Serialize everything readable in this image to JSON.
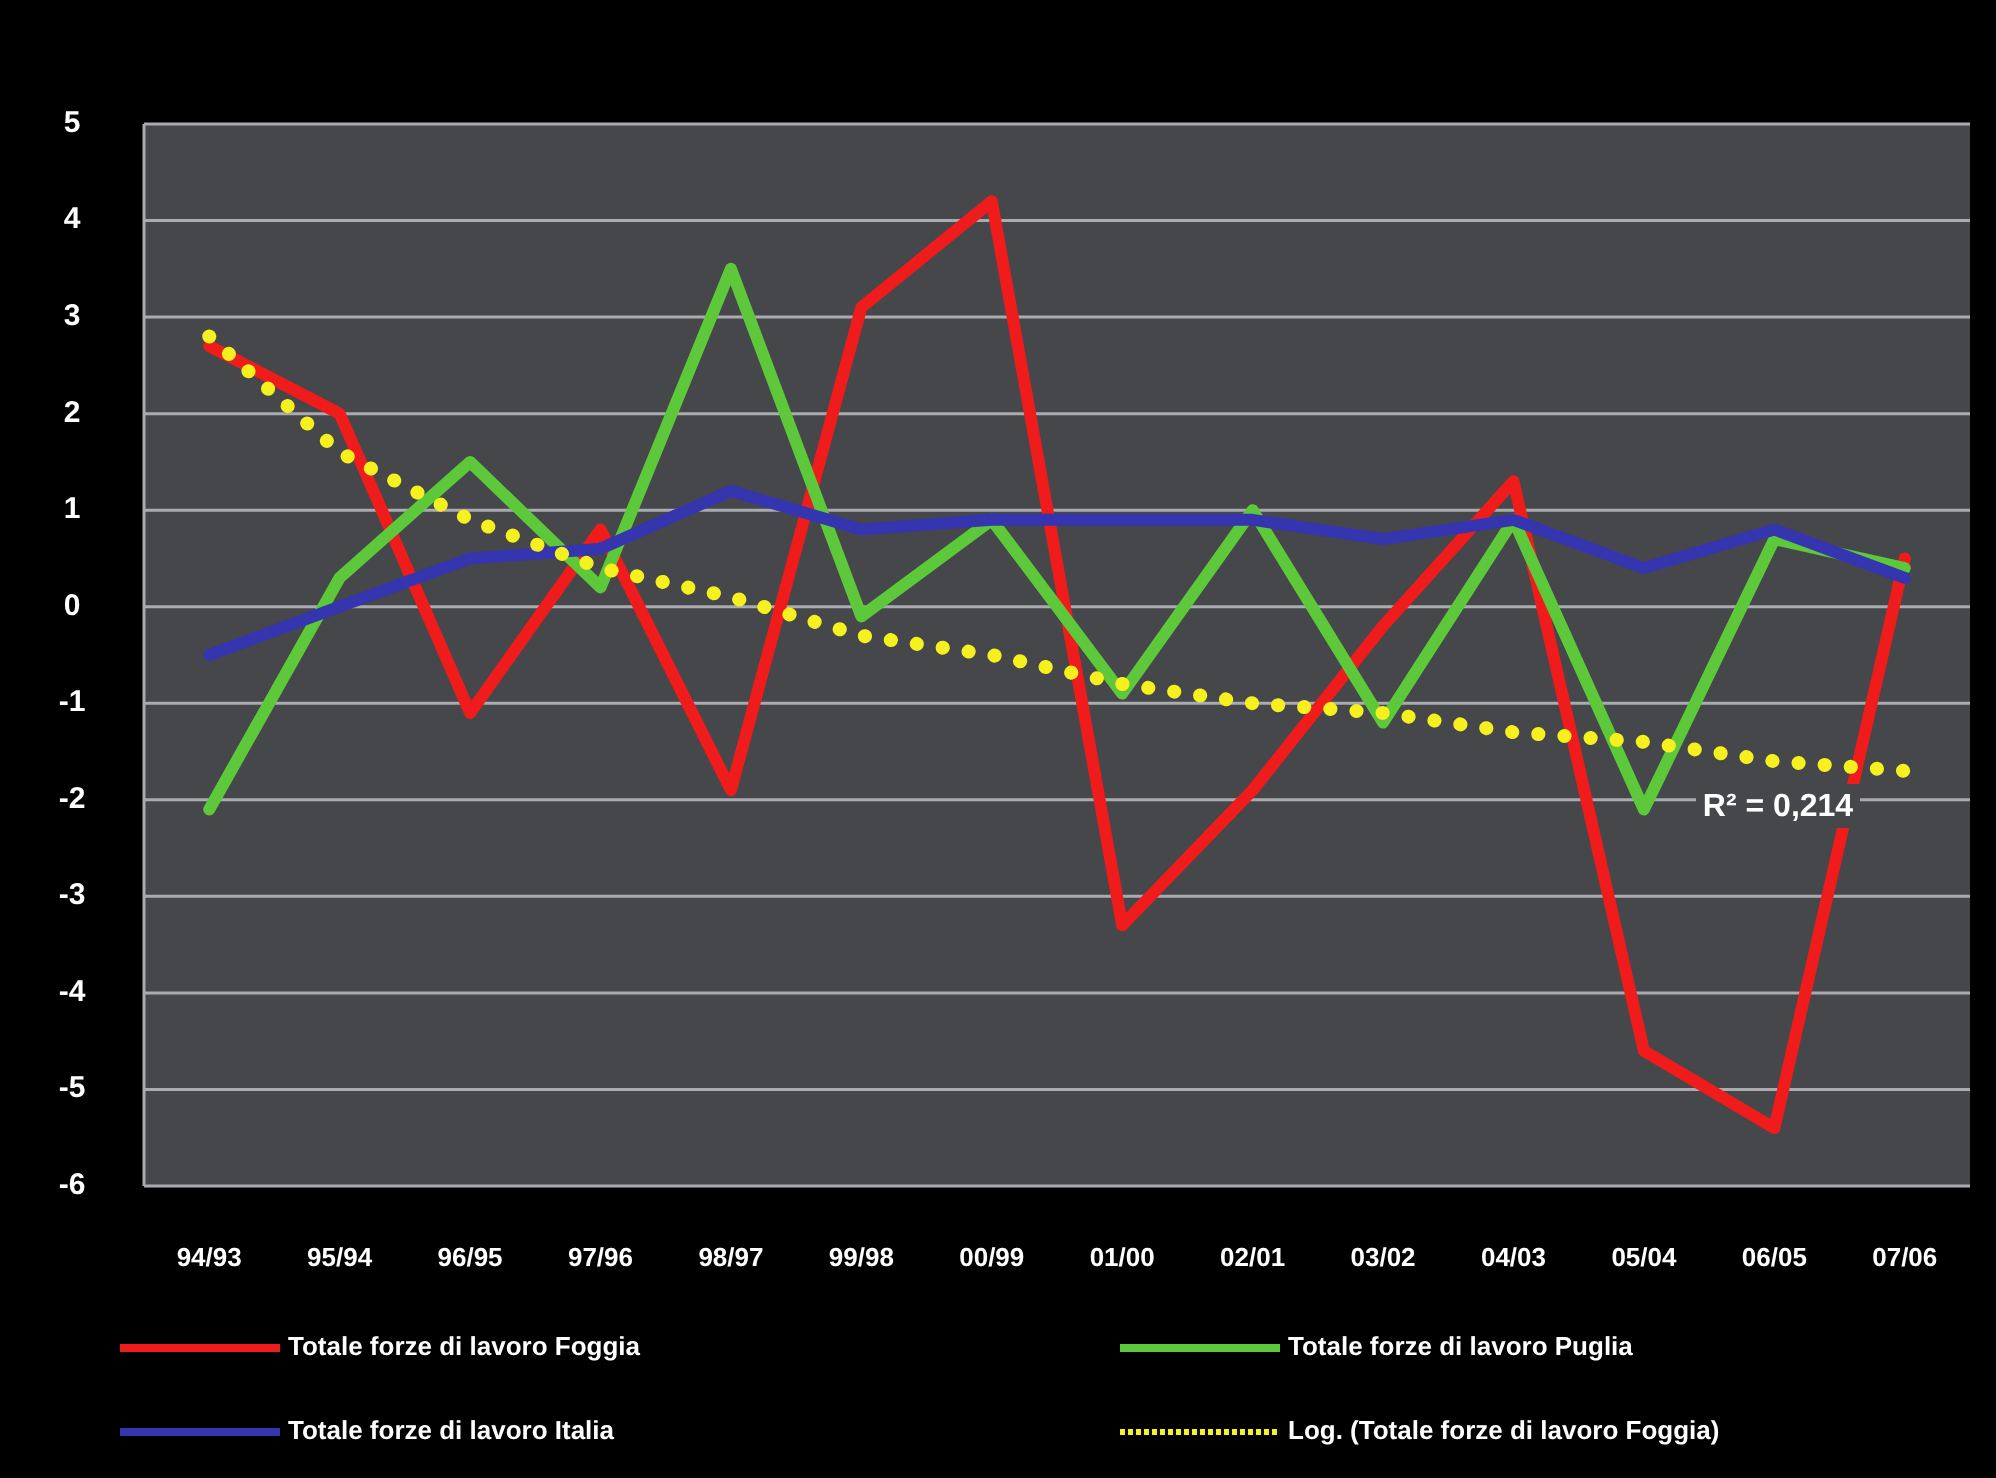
{
  "chart_data": {
    "type": "line",
    "categories": [
      "94/93",
      "95/94",
      "96/95",
      "97/96",
      "98/97",
      "99/98",
      "00/99",
      "01/00",
      "02/01",
      "03/02",
      "04/03",
      "05/04",
      "06/05",
      "07/06"
    ],
    "ylim": [
      -6,
      5
    ],
    "yticks": [
      -6,
      -5,
      -4,
      -3,
      -2,
      -1,
      0,
      1,
      2,
      3,
      4,
      5
    ],
    "grid": "y",
    "legend": "bottom",
    "marker": "none",
    "series": [
      {
        "name": "Totale forze di lavoro Foggia",
        "color": "#f01c1c",
        "values": [
          2.7,
          2.0,
          -1.1,
          0.8,
          -1.9,
          3.1,
          4.2,
          -3.3,
          -1.9,
          -0.2,
          1.3,
          -4.6,
          -5.4,
          0.5
        ]
      },
      {
        "name": "Totale forze di lavoro Puglia",
        "color": "#5cc83a",
        "values": [
          -2.1,
          0.3,
          1.5,
          0.2,
          3.5,
          -0.1,
          0.9,
          -0.9,
          1.0,
          -1.2,
          0.9,
          -2.1,
          0.7,
          0.4
        ]
      },
      {
        "name": "Totale forze di lavoro Italia",
        "color": "#3535b0",
        "values": [
          -0.5,
          0.0,
          0.5,
          0.6,
          1.2,
          0.8,
          0.9,
          0.9,
          0.9,
          0.7,
          0.9,
          0.4,
          0.8,
          0.3
        ]
      },
      {
        "name": "Log. (Totale forze di lavoro Foggia)",
        "color": "#f5f01e",
        "line_style": "dotted",
        "values": [
          2.8,
          1.6,
          0.9,
          0.4,
          0.1,
          -0.3,
          -0.5,
          -0.8,
          -1.0,
          -1.1,
          -1.3,
          -1.4,
          -1.6,
          -1.7
        ]
      }
    ],
    "annotations": [
      "R² = 0,214"
    ]
  }
}
